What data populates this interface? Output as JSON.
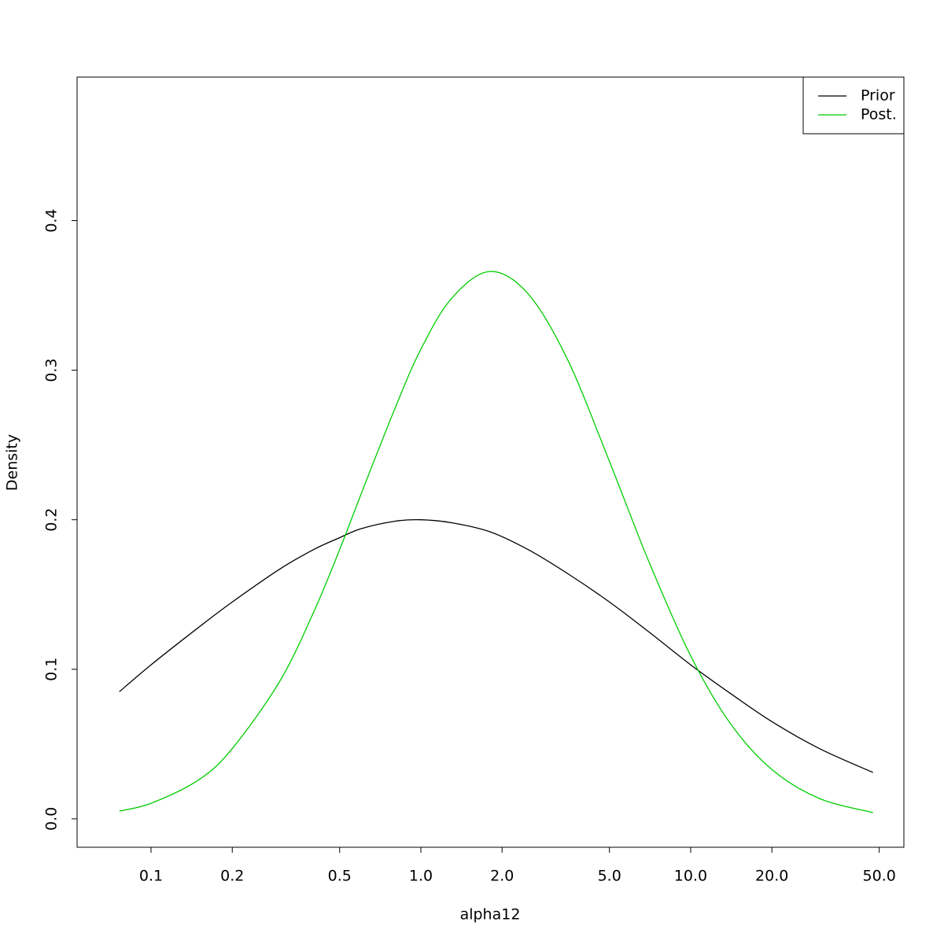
{
  "chart_data": {
    "type": "line",
    "x_label": "alpha12",
    "y_label": "Density",
    "x_log": true,
    "x": [
      0.0763,
      0.1,
      0.15,
      0.2,
      0.3,
      0.4,
      0.5,
      0.6,
      0.8,
      1,
      1.3,
      1.8,
      2.5,
      3.5,
      5,
      7,
      10,
      14,
      20,
      30,
      47.4
    ],
    "series": [
      {
        "name": "Prior",
        "color": "#000000",
        "values": [
          0.085,
          0.103,
          0.128,
          0.145,
          0.167,
          0.18,
          0.188,
          0.194,
          0.199,
          0.2,
          0.198,
          0.192,
          0.18,
          0.164,
          0.145,
          0.125,
          0.103,
          0.084,
          0.065,
          0.047,
          0.031
        ]
      },
      {
        "name": "Post.",
        "color": "#00cd00",
        "values": [
          0.0052,
          0.0104,
          0.026,
          0.047,
          0.092,
          0.138,
          0.18,
          0.217,
          0.274,
          0.314,
          0.348,
          0.366,
          0.351,
          0.307,
          0.239,
          0.172,
          0.109,
          0.064,
          0.033,
          0.0136,
          0.0042
        ]
      }
    ],
    "xlim": [
      0.0532,
      61.7
    ],
    "ylim": [
      -0.019,
      0.496
    ],
    "xticks": [
      0.1,
      0.2,
      0.5,
      {
        "value": 1,
        "label": "1.0"
      },
      {
        "value": 2,
        "label": "2.0"
      },
      {
        "value": 5,
        "label": "5.0"
      },
      {
        "value": 10,
        "label": "10.0"
      },
      {
        "value": 20,
        "label": "20.0"
      },
      {
        "value": 50,
        "label": "50.0"
      }
    ],
    "yticks": [
      {
        "value": 0,
        "label": "0.0"
      },
      0.1,
      0.2,
      0.3,
      0.4
    ],
    "legend": "topright"
  }
}
